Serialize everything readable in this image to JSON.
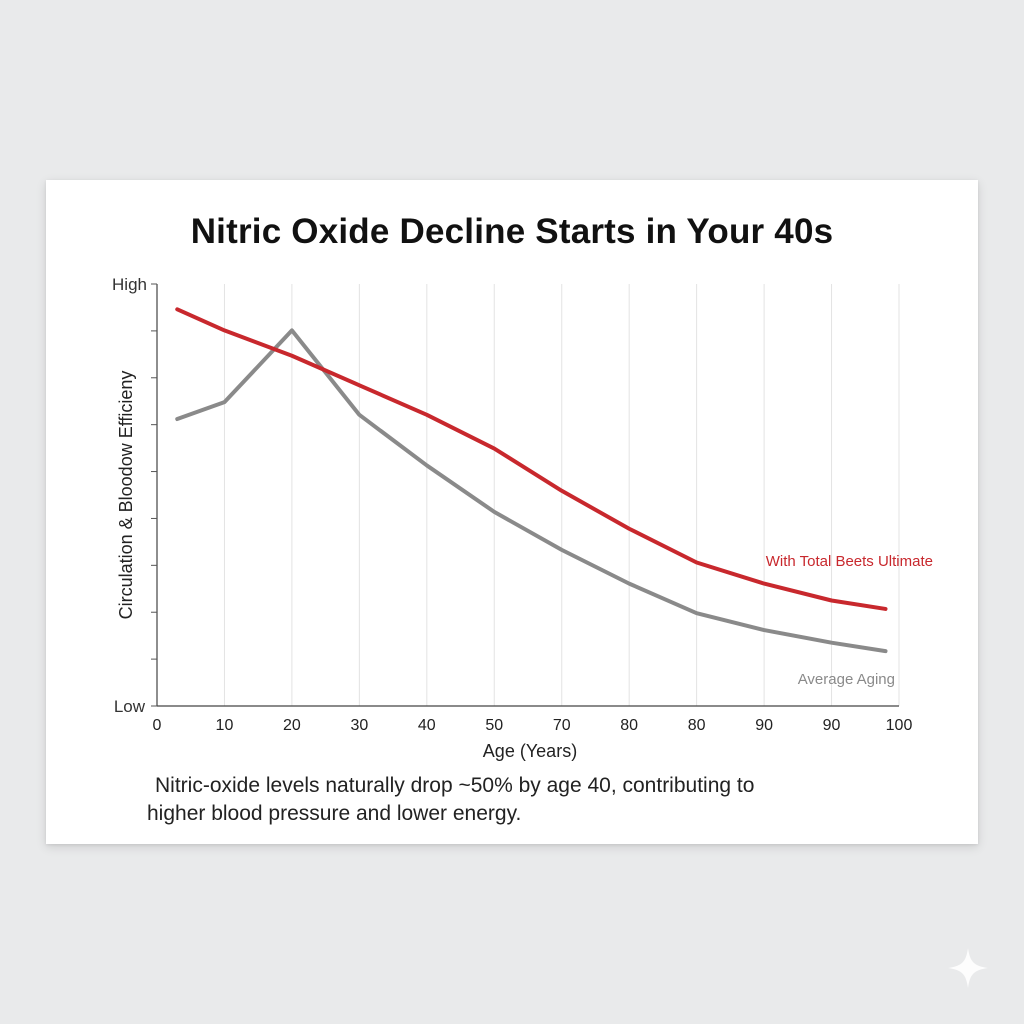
{
  "chart_data": {
    "type": "line",
    "title": "Nitric Oxide Decline Starts in Your 40s",
    "xlabel": "Age (Years)",
    "ylabel": "Circulation & Bloodow Efficieny",
    "x_tick_labels": [
      "0",
      "10",
      "20",
      "30",
      "40",
      "50",
      "70",
      "80",
      "80",
      "90",
      "90",
      "100"
    ],
    "y_tick_labels": {
      "top": "High",
      "bottom": "Low"
    },
    "ylim": [
      0,
      100
    ],
    "grid": "vertical",
    "series": [
      {
        "name": "With Total Beets Ultimate",
        "color": "#c8282d",
        "x": [
          3,
          10,
          20,
          30,
          40,
          50,
          60,
          70,
          80,
          90,
          100,
          108
        ],
        "y": [
          94,
          89,
          83,
          76,
          69,
          61,
          51,
          42,
          34,
          29,
          25,
          23
        ]
      },
      {
        "name": "Average Aging",
        "color": "#8a8a8a",
        "x": [
          3,
          10,
          20,
          30,
          40,
          50,
          60,
          70,
          80,
          90,
          100,
          108
        ],
        "y": [
          68,
          72,
          89,
          69,
          57,
          46,
          37,
          29,
          22,
          18,
          15,
          13
        ]
      }
    ]
  },
  "caption": {
    "line1": "Nitric-oxide levels naturally drop ~50% by age 40, contributing to",
    "line2": "higher blood pressure and lower energy."
  }
}
